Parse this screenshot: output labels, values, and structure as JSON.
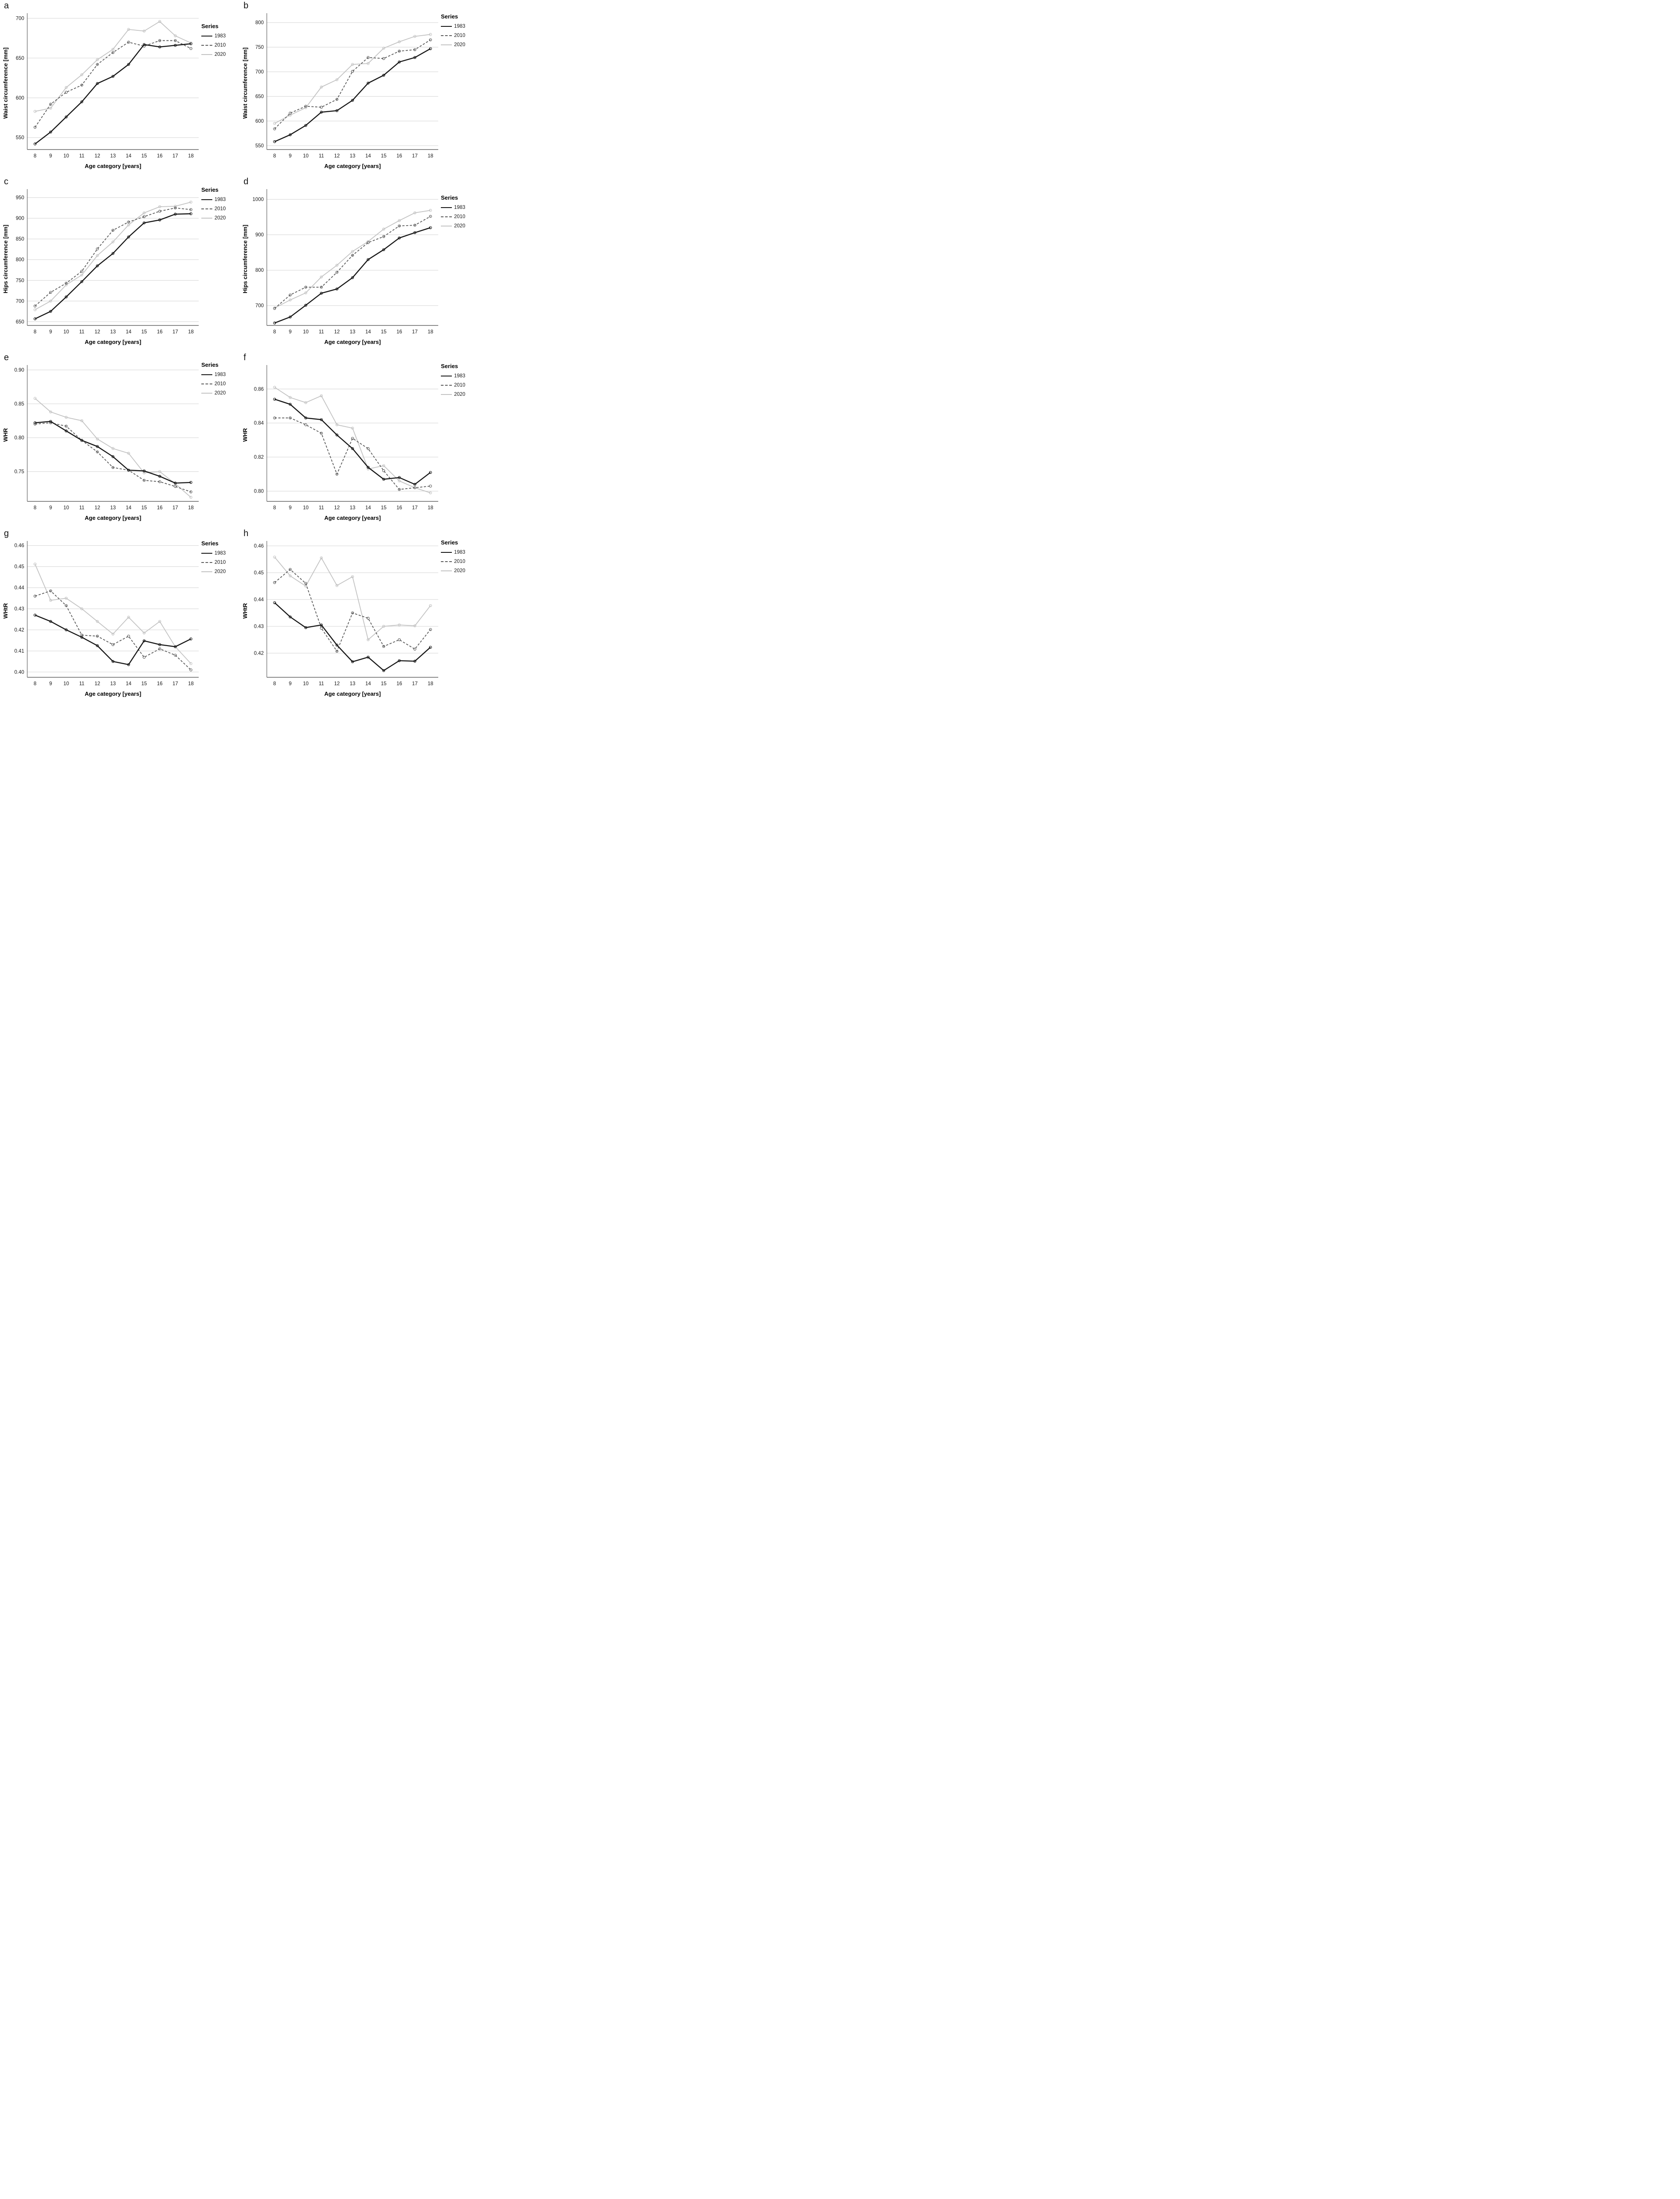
{
  "legend": {
    "title": "Series",
    "items": [
      {
        "label": "1983",
        "color": "#161616",
        "dash": "none",
        "width": 2.4
      },
      {
        "label": "2010",
        "color": "#5b5b5b",
        "dash": "5 3.5",
        "width": 1.8
      },
      {
        "label": "2020",
        "color": "#c3c3c3",
        "dash": "none",
        "width": 1.8
      }
    ]
  },
  "colors": {
    "series_1983": "#161616",
    "series_2010": "#5b5b5b",
    "series_2020": "#c3c3c3",
    "gridline": "#d4d4d4",
    "axis": "#636363",
    "background": "#ffffff"
  },
  "chart_data": [
    {
      "panel": "a",
      "type": "line",
      "title": "",
      "xlabel": "Age category [years]",
      "ylabel": "Waist circumference [mm]",
      "x": [
        8,
        9,
        10,
        11,
        12,
        13,
        14,
        15,
        16,
        17,
        18
      ],
      "ylim": [
        535,
        702
      ],
      "grid": true,
      "legend_position": "right-top",
      "legend_y": 52,
      "yticks": [
        {
          "value": 550,
          "label": "550"
        },
        {
          "value": 600,
          "label": "600"
        },
        {
          "value": 650,
          "label": "650"
        },
        {
          "value": 700,
          "label": "700"
        }
      ],
      "series": [
        {
          "name": "1983",
          "values": [
            542,
            557,
            576,
            595,
            618,
            627,
            642,
            667,
            664,
            666,
            668
          ]
        },
        {
          "name": "2010",
          "values": [
            563,
            592,
            607,
            616,
            642,
            657,
            670,
            665,
            672,
            672,
            662
          ]
        },
        {
          "name": "2020",
          "values": [
            583,
            587,
            613,
            629,
            648,
            661,
            686,
            684,
            696,
            678,
            669
          ]
        }
      ]
    },
    {
      "panel": "b",
      "type": "line",
      "title": "",
      "xlabel": "Age category [years]",
      "ylabel": "Waist circumference [mm]",
      "x": [
        8,
        9,
        10,
        11,
        12,
        13,
        14,
        15,
        16,
        17,
        18
      ],
      "ylim": [
        542,
        812
      ],
      "grid": true,
      "legend_position": "right-top",
      "legend_y": 30,
      "yticks": [
        {
          "value": 550,
          "label": "550"
        },
        {
          "value": 600,
          "label": "600"
        },
        {
          "value": 650,
          "label": "650"
        },
        {
          "value": 700,
          "label": "700"
        },
        {
          "value": 750,
          "label": "750"
        },
        {
          "value": 800,
          "label": "800"
        }
      ],
      "series": [
        {
          "name": "1983",
          "values": [
            558,
            572,
            591,
            618,
            621,
            642,
            677,
            693,
            720,
            729,
            747
          ]
        },
        {
          "name": "2010",
          "values": [
            584,
            616,
            630,
            628,
            644,
            701,
            729,
            727,
            742,
            745,
            765
          ]
        },
        {
          "name": "2020",
          "values": [
            595,
            612,
            627,
            669,
            684,
            715,
            717,
            748,
            761,
            772,
            776
          ]
        }
      ]
    },
    {
      "panel": "c",
      "type": "line",
      "title": "",
      "xlabel": "Age category [years]",
      "ylabel": "Hips circumference [mm]",
      "x": [
        8,
        9,
        10,
        11,
        12,
        13,
        14,
        15,
        16,
        17,
        18
      ],
      "ylim": [
        641,
        962
      ],
      "grid": true,
      "legend_position": "right-top",
      "legend_y": 24,
      "yticks": [
        {
          "value": 650,
          "label": "650"
        },
        {
          "value": 700,
          "label": "700"
        },
        {
          "value": 750,
          "label": "750"
        },
        {
          "value": 800,
          "label": "800"
        },
        {
          "value": 850,
          "label": "850"
        },
        {
          "value": 900,
          "label": "900"
        },
        {
          "value": 950,
          "label": "950"
        }
      ],
      "series": [
        {
          "name": "1983",
          "values": [
            657,
            675,
            710,
            747,
            785,
            815,
            855,
            889,
            896,
            910,
            911
          ]
        },
        {
          "name": "2010",
          "values": [
            688,
            721,
            743,
            772,
            826,
            871,
            891,
            904,
            917,
            925,
            921
          ]
        },
        {
          "name": "2020",
          "values": [
            679,
            700,
            739,
            763,
            810,
            843,
            884,
            913,
            928,
            929,
            939
          ]
        }
      ]
    },
    {
      "panel": "d",
      "type": "line",
      "title": "",
      "xlabel": "Age category [years]",
      "ylabel": "Hips circumference [mm]",
      "x": [
        8,
        9,
        10,
        11,
        12,
        13,
        14,
        15,
        16,
        17,
        18
      ],
      "ylim": [
        644,
        1019
      ],
      "grid": true,
      "legend_position": "right-top",
      "legend_y": 42,
      "yticks": [
        {
          "value": 700,
          "label": "700"
        },
        {
          "value": 800,
          "label": "800"
        },
        {
          "value": 900,
          "label": "900"
        },
        {
          "value": 1000,
          "label": "1000"
        }
      ],
      "series": [
        {
          "name": "1983",
          "values": [
            651,
            668,
            701,
            735,
            747,
            779,
            830,
            858,
            891,
            906,
            920
          ]
        },
        {
          "name": "2010",
          "values": [
            692,
            730,
            752,
            752,
            794,
            842,
            878,
            895,
            925,
            927,
            952
          ]
        },
        {
          "name": "2020",
          "values": [
            693,
            716,
            736,
            781,
            814,
            853,
            881,
            916,
            940,
            962,
            969
          ]
        }
      ]
    },
    {
      "panel": "e",
      "type": "line",
      "title": "",
      "xlabel": "Age category [years]",
      "ylabel": "WHR",
      "x": [
        8,
        9,
        10,
        11,
        12,
        13,
        14,
        15,
        16,
        17,
        18
      ],
      "ylim": [
        0.706,
        0.902
      ],
      "grid": true,
      "legend_position": "right-top",
      "legend_y": 22,
      "yticks": [
        {
          "value": 0.75,
          "label": "0.75"
        },
        {
          "value": 0.8,
          "label": "0.80"
        },
        {
          "value": 0.85,
          "label": "0.85"
        },
        {
          "value": 0.9,
          "label": "0.90"
        }
      ],
      "series": [
        {
          "name": "1983",
          "values": [
            0.822,
            0.824,
            0.81,
            0.796,
            0.787,
            0.772,
            0.752,
            0.751,
            0.743,
            0.733,
            0.734
          ]
        },
        {
          "name": "2010",
          "values": [
            0.82,
            0.822,
            0.817,
            0.796,
            0.779,
            0.756,
            0.752,
            0.737,
            0.735,
            0.728,
            0.72
          ]
        },
        {
          "name": "2020",
          "values": [
            0.858,
            0.838,
            0.83,
            0.825,
            0.798,
            0.784,
            0.777,
            0.748,
            0.75,
            0.732,
            0.712
          ]
        }
      ]
    },
    {
      "panel": "f",
      "type": "line",
      "title": "",
      "xlabel": "Age category [years]",
      "ylabel": "WHR",
      "x": [
        8,
        9,
        10,
        11,
        12,
        13,
        14,
        15,
        16,
        17,
        18
      ],
      "ylim": [
        0.794,
        0.872
      ],
      "grid": true,
      "legend_position": "right-top",
      "legend_y": 25,
      "yticks": [
        {
          "value": 0.8,
          "label": "0.80"
        },
        {
          "value": 0.82,
          "label": "0.82"
        },
        {
          "value": 0.84,
          "label": "0.84"
        },
        {
          "value": 0.86,
          "label": "0.86"
        }
      ],
      "series": [
        {
          "name": "1983",
          "values": [
            0.854,
            0.851,
            0.843,
            0.842,
            0.833,
            0.825,
            0.814,
            0.807,
            0.808,
            0.804,
            0.811
          ]
        },
        {
          "name": "2010",
          "values": [
            0.843,
            0.843,
            0.839,
            0.834,
            0.81,
            0.831,
            0.825,
            0.812,
            0.801,
            0.802,
            0.803
          ]
        },
        {
          "name": "2020",
          "values": [
            0.861,
            0.855,
            0.852,
            0.856,
            0.839,
            0.837,
            0.813,
            0.815,
            0.806,
            0.802,
            0.799
          ]
        }
      ]
    },
    {
      "panel": "g",
      "type": "line",
      "title": "",
      "xlabel": "Age category [years]",
      "ylabel": "WHtR",
      "x": [
        8,
        9,
        10,
        11,
        12,
        13,
        14,
        15,
        16,
        17,
        18
      ],
      "ylim": [
        0.3975,
        0.4605
      ],
      "grid": true,
      "legend_position": "right-top",
      "legend_y": 28,
      "yticks": [
        {
          "value": 0.4,
          "label": "0.40"
        },
        {
          "value": 0.41,
          "label": "0.41"
        },
        {
          "value": 0.42,
          "label": "0.42"
        },
        {
          "value": 0.43,
          "label": "0.43"
        },
        {
          "value": 0.44,
          "label": "0.44"
        },
        {
          "value": 0.45,
          "label": "0.45"
        },
        {
          "value": 0.46,
          "label": "0.46"
        }
      ],
      "series": [
        {
          "name": "1983",
          "values": [
            0.427,
            0.424,
            0.42,
            0.4165,
            0.4125,
            0.405,
            0.4035,
            0.4148,
            0.413,
            0.412,
            0.4157
          ]
        },
        {
          "name": "2010",
          "values": [
            0.436,
            0.4385,
            0.4315,
            0.4175,
            0.417,
            0.413,
            0.417,
            0.407,
            0.411,
            0.408,
            0.401
          ]
        },
        {
          "name": "2020",
          "values": [
            0.4512,
            0.434,
            0.435,
            0.43,
            0.424,
            0.418,
            0.426,
            0.4185,
            0.424,
            0.412,
            0.404
          ]
        }
      ]
    },
    {
      "panel": "h",
      "type": "line",
      "title": "",
      "xlabel": "Age category [years]",
      "ylabel": "WHtR",
      "x": [
        8,
        9,
        10,
        11,
        12,
        13,
        14,
        15,
        16,
        17,
        18
      ],
      "ylim": [
        0.411,
        0.4605
      ],
      "grid": true,
      "legend_position": "right-top",
      "legend_y": 26,
      "yticks": [
        {
          "value": 0.42,
          "label": "0.42"
        },
        {
          "value": 0.43,
          "label": "0.43"
        },
        {
          "value": 0.44,
          "label": "0.44"
        },
        {
          "value": 0.45,
          "label": "0.45"
        },
        {
          "value": 0.46,
          "label": "0.46"
        }
      ],
      "series": [
        {
          "name": "1983",
          "values": [
            0.4388,
            0.4335,
            0.4295,
            0.4305,
            0.423,
            0.4168,
            0.4185,
            0.4135,
            0.4172,
            0.417,
            0.4222
          ]
        },
        {
          "name": "2010",
          "values": [
            0.4463,
            0.4512,
            0.446,
            0.4293,
            0.4207,
            0.435,
            0.433,
            0.4225,
            0.425,
            0.4215,
            0.4288
          ]
        },
        {
          "name": "2020",
          "values": [
            0.4558,
            0.4488,
            0.445,
            0.4555,
            0.4452,
            0.4485,
            0.425,
            0.43,
            0.4305,
            0.4302,
            0.4377
          ]
        }
      ]
    }
  ]
}
